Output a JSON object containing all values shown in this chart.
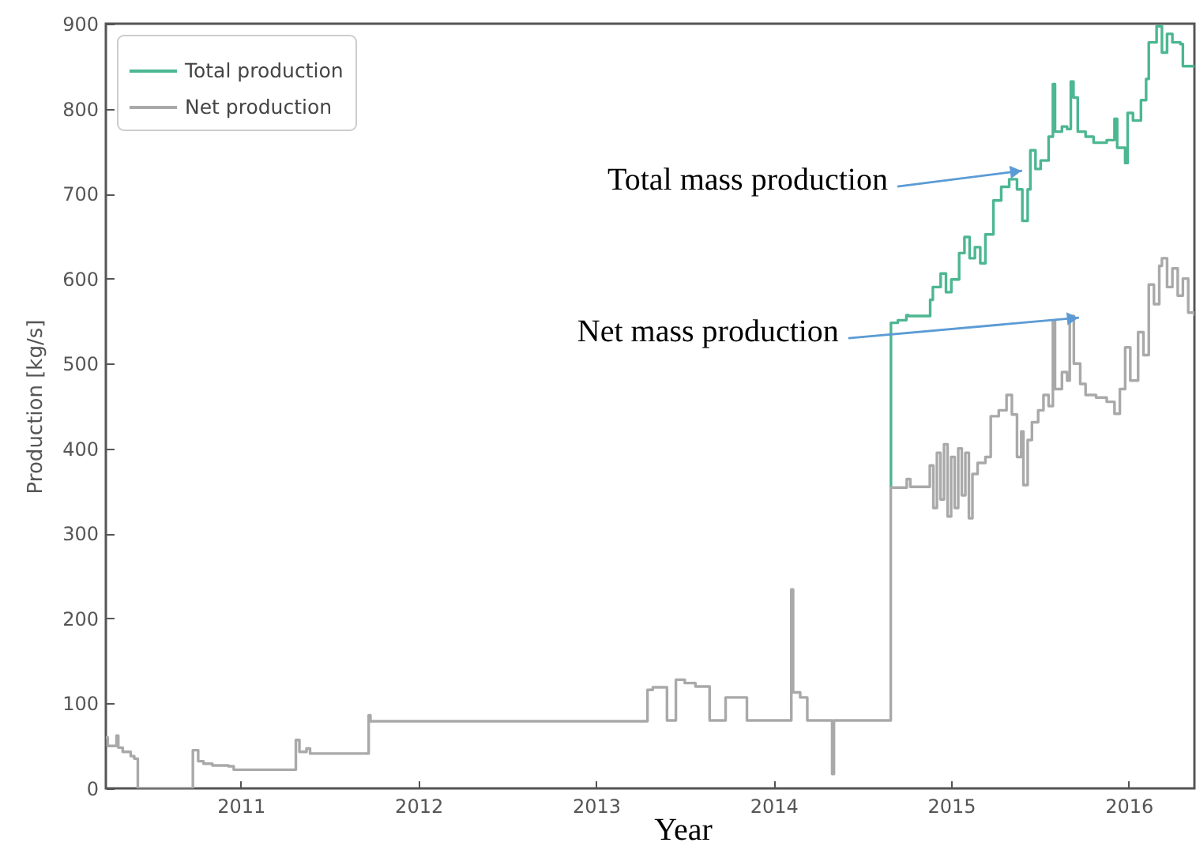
{
  "chart_data": {
    "type": "step",
    "xlabel": "Year",
    "ylabel": "Production [kg/s]",
    "xlim": [
      2010.24,
      2016.37
    ],
    "ylim": [
      0,
      900
    ],
    "xticks": [
      2011,
      2012,
      2013,
      2014,
      2015,
      2016
    ],
    "yticks": [
      0,
      100,
      200,
      300,
      400,
      500,
      600,
      700,
      800,
      900
    ],
    "grid": false,
    "legend": "top left",
    "series": [
      {
        "name": "Total production",
        "color": "#4cb791",
        "x": [
          2014.66,
          2014.661,
          2014.7,
          2014.748,
          2014.76,
          2014.882,
          2014.897,
          2014.941,
          2014.971,
          2015.001,
          2015.045,
          2015.075,
          2015.104,
          2015.134,
          2015.164,
          2015.193,
          2015.238,
          2015.282,
          2015.327,
          2015.371,
          2015.401,
          2015.431,
          2015.446,
          2015.475,
          2015.504,
          2015.549,
          2015.573,
          2015.585,
          2015.624,
          2015.653,
          2015.674,
          2015.689,
          2015.713,
          2015.757,
          2015.802,
          2015.876,
          2015.92,
          2015.935,
          2015.98,
          2015.994,
          2016.024,
          2016.069,
          2016.098,
          2016.113,
          2016.157,
          2016.187,
          2016.216,
          2016.246,
          2016.291,
          2016.305,
          2016.37
        ],
        "values": [
          354,
          548,
          551,
          557,
          556,
          575,
          590,
          606,
          584,
          599,
          630,
          649,
          624,
          637,
          618,
          652,
          692,
          708,
          717,
          705,
          668,
          705,
          751,
          729,
          739,
          767,
          829,
          773,
          779,
          776,
          832,
          813,
          773,
          767,
          760,
          763,
          788,
          754,
          736,
          795,
          786,
          810,
          835,
          878,
          897,
          866,
          888,
          878,
          876,
          850,
          850
        ]
      },
      {
        "name": "Net production",
        "color": "#a9a9a9",
        "x": [
          2010.24,
          2010.25,
          2010.3,
          2010.31,
          2010.335,
          2010.38,
          2010.4,
          2010.42,
          2010.73,
          2010.76,
          2010.79,
          2010.84,
          2010.93,
          2010.96,
          2011.31,
          2011.33,
          2011.37,
          2011.39,
          2011.72,
          2011.73,
          2013.29,
          2013.32,
          2013.4,
          2013.45,
          2013.5,
          2013.56,
          2013.64,
          2013.73,
          2013.85,
          2014.1,
          2014.11,
          2014.15,
          2014.19,
          2014.33,
          2014.34,
          2014.66,
          2014.75,
          2014.77,
          2014.88,
          2014.9,
          2014.92,
          2014.94,
          2014.96,
          2014.98,
          2015.0,
          2015.02,
          2015.04,
          2015.06,
          2015.08,
          2015.1,
          2015.12,
          2015.149,
          2015.193,
          2015.223,
          2015.268,
          2015.312,
          2015.342,
          2015.371,
          2015.395,
          2015.407,
          2015.431,
          2015.455,
          2015.49,
          2015.52,
          2015.549,
          2015.573,
          2015.585,
          2015.624,
          2015.653,
          2015.668,
          2015.691,
          2015.727,
          2015.757,
          2015.816,
          2015.876,
          2015.92,
          2015.95,
          2015.98,
          2016.009,
          2016.053,
          2016.083,
          2016.113,
          2016.142,
          2016.172,
          2016.187,
          2016.216,
          2016.246,
          2016.276,
          2016.305,
          2016.335,
          2016.37
        ],
        "values": [
          60,
          50,
          62,
          48,
          43,
          38,
          35,
          0,
          45,
          32,
          29,
          27,
          26,
          22,
          57,
          43,
          47,
          41,
          86,
          79,
          116,
          119,
          80,
          128,
          124,
          120,
          80,
          107,
          80,
          234,
          113,
          107,
          80,
          17,
          80,
          354,
          364,
          355,
          380,
          330,
          395,
          340,
          405,
          320,
          390,
          330,
          400,
          345,
          395,
          318,
          370,
          383,
          390,
          438,
          445,
          463,
          440,
          390,
          420,
          357,
          410,
          431,
          445,
          463,
          450,
          550,
          470,
          490,
          480,
          556,
          500,
          476,
          463,
          460,
          455,
          441,
          470,
          519,
          480,
          537,
          510,
          593,
          570,
          615,
          624,
          590,
          612,
          580,
          600,
          560,
          556
        ]
      }
    ],
    "annotations": [
      {
        "text": "Total mass production",
        "x": 2015.4,
        "y": 727
      },
      {
        "text": "Net mass production",
        "x": 2015.72,
        "y": 554
      }
    ]
  }
}
